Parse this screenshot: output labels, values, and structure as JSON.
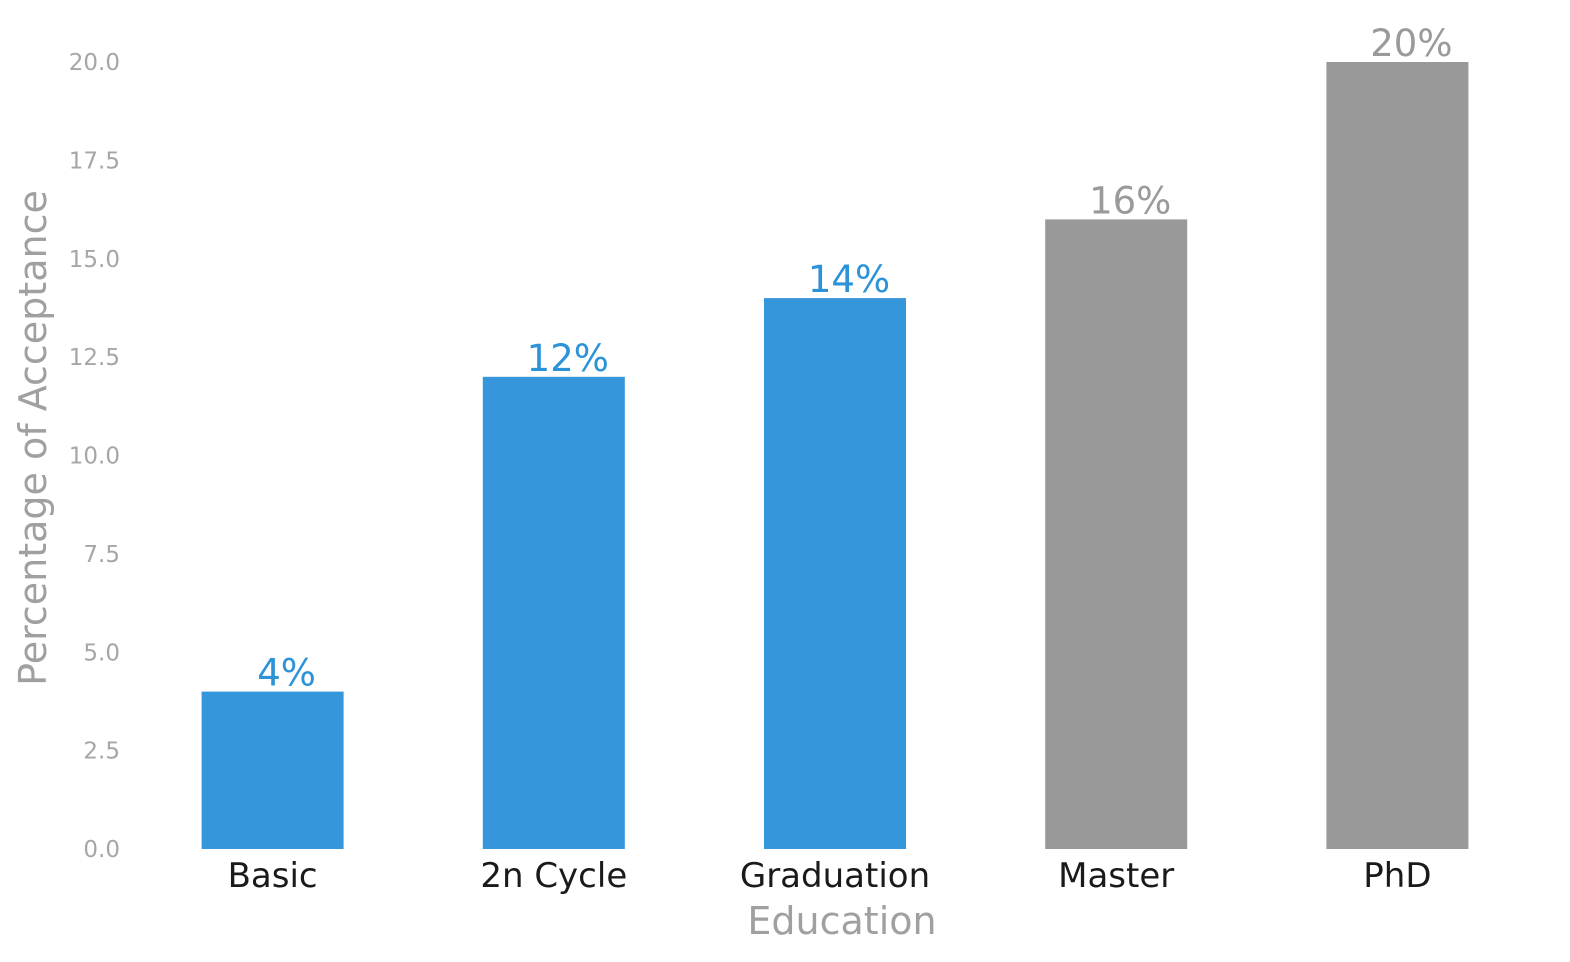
{
  "chart_data": {
    "type": "bar",
    "title": "",
    "xlabel": "Education",
    "ylabel": "Percentage of Acceptance",
    "categories": [
      "Basic",
      "2n Cycle",
      "Graduation",
      "Master",
      "PhD"
    ],
    "values": [
      4,
      12,
      14,
      16,
      20
    ],
    "data_labels": [
      "4%",
      "12%",
      "14%",
      "16%",
      "20%"
    ],
    "bar_colors": [
      "#3596db",
      "#3596db",
      "#3596db",
      "#999999",
      "#999999"
    ],
    "data_label_colors": [
      "#2d93d8",
      "#2d93d8",
      "#2d93d8",
      "#9a9a9a",
      "#9a9a9a"
    ],
    "ylim": [
      0,
      20
    ],
    "yticks": [
      0,
      2.5,
      5,
      7.5,
      10,
      12.5,
      15,
      17.5,
      20
    ],
    "ytick_labels": [
      "0.0",
      "2.5",
      "5.0",
      "7.5",
      "10.0",
      "12.5",
      "15.0",
      "17.5",
      "20.0"
    ],
    "grid": false,
    "legend": "none"
  }
}
